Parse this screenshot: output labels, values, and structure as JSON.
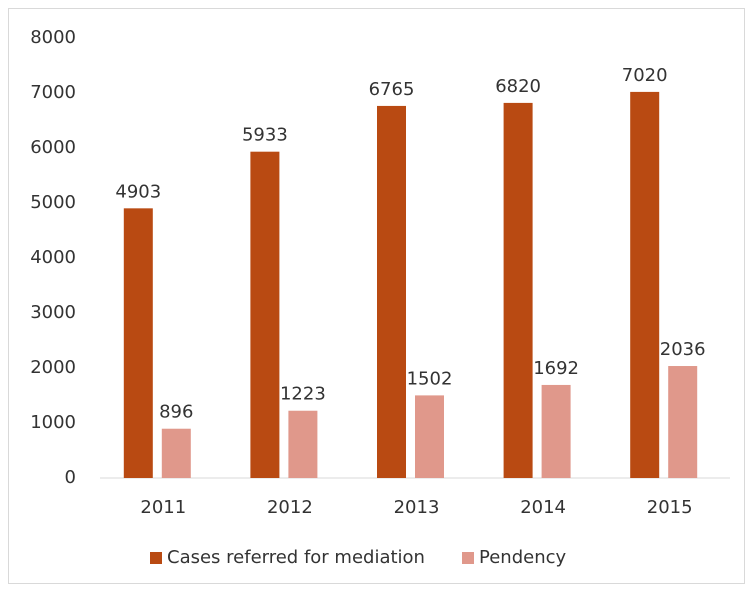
{
  "chart_data": {
    "type": "bar",
    "categories": [
      "2011",
      "2012",
      "2013",
      "2014",
      "2015"
    ],
    "series": [
      {
        "name": "Cases referred for mediation",
        "color": "#b94a12",
        "values": [
          4903,
          5933,
          6765,
          6820,
          7020
        ]
      },
      {
        "name": "Pendency",
        "color": "#e0988b",
        "values": [
          896,
          1223,
          1502,
          1692,
          2036
        ]
      }
    ],
    "ylim": [
      0,
      8000
    ],
    "yticks": [
      0,
      1000,
      2000,
      3000,
      4000,
      5000,
      6000,
      7000,
      8000
    ],
    "grid": false,
    "legend": "bottom"
  }
}
